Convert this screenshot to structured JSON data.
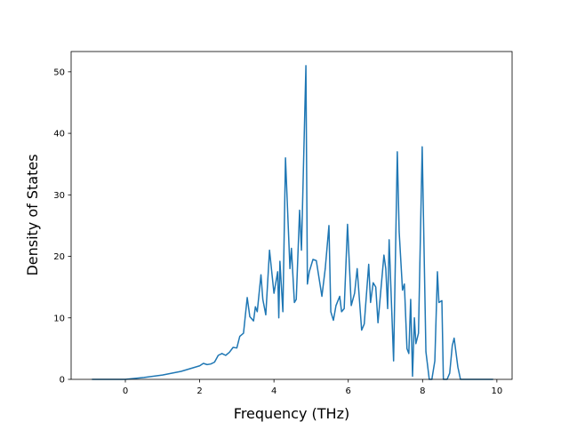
{
  "chart_data": {
    "type": "line",
    "xlabel": "Frequency (THz)",
    "ylabel": "Density of States",
    "x": [
      -0.9,
      0,
      0.5,
      1.0,
      1.5,
      2.0,
      2.1,
      2.2,
      2.3,
      2.4,
      2.5,
      2.6,
      2.7,
      2.8,
      2.9,
      3.0,
      3.08,
      3.18,
      3.28,
      3.35,
      3.45,
      3.5,
      3.55,
      3.65,
      3.7,
      3.78,
      3.88,
      4.0,
      4.1,
      4.13,
      4.16,
      4.24,
      4.31,
      4.43,
      4.47,
      4.55,
      4.6,
      4.69,
      4.74,
      4.86,
      4.9,
      4.95,
      5.05,
      5.14,
      5.29,
      5.38,
      5.48,
      5.53,
      5.6,
      5.67,
      5.77,
      5.82,
      5.89,
      5.98,
      6.08,
      6.17,
      6.24,
      6.36,
      6.43,
      6.55,
      6.6,
      6.67,
      6.74,
      6.8,
      6.96,
      7.01,
      7.06,
      7.1,
      7.22,
      7.32,
      7.37,
      7.46,
      7.51,
      7.58,
      7.63,
      7.68,
      7.73,
      7.78,
      7.82,
      7.89,
      7.99,
      8.09,
      8.18,
      8.25,
      8.33,
      8.4,
      8.44,
      8.52,
      8.56,
      8.66,
      8.73,
      8.8,
      8.85,
      8.95,
      9.02,
      9.9
    ],
    "series": [
      {
        "name": "DOS",
        "color": "#1f77b4",
        "values": [
          0,
          0,
          0.3,
          0.7,
          1.3,
          2.2,
          2.6,
          2.4,
          2.5,
          2.8,
          3.9,
          4.2,
          3.9,
          4.4,
          5.2,
          5.1,
          7.0,
          7.5,
          13.3,
          10.2,
          9.5,
          11.8,
          11.0,
          17.0,
          13.0,
          10.5,
          21.0,
          14.0,
          17.5,
          10.0,
          19.2,
          11.0,
          36.0,
          18.0,
          21.3,
          12.5,
          13.0,
          27.5,
          21.0,
          51.0,
          15.5,
          17.5,
          19.5,
          19.3,
          13.5,
          18.0,
          25.0,
          11.0,
          9.6,
          12.0,
          13.5,
          11.0,
          11.5,
          25.2,
          12.0,
          14.0,
          18.0,
          8.0,
          9.0,
          18.7,
          12.5,
          15.7,
          15.0,
          9.2,
          20.2,
          18.0,
          11.5,
          22.7,
          3.0,
          37.0,
          24.0,
          14.5,
          15.5,
          5.0,
          4.2,
          13.0,
          0.5,
          10.0,
          5.8,
          7.5,
          37.8,
          4.5,
          0,
          0,
          3.0,
          17.5,
          12.5,
          12.8,
          0,
          0,
          1.0,
          5.5,
          6.7,
          2.0,
          0,
          0
        ]
      }
    ],
    "xlim": [
      -1.46,
      10.41
    ],
    "ylim": [
      0,
      53.3
    ],
    "xticks": [
      0,
      2,
      4,
      6,
      8,
      10
    ],
    "yticks": [
      0,
      10,
      20,
      30,
      40,
      50
    ]
  }
}
